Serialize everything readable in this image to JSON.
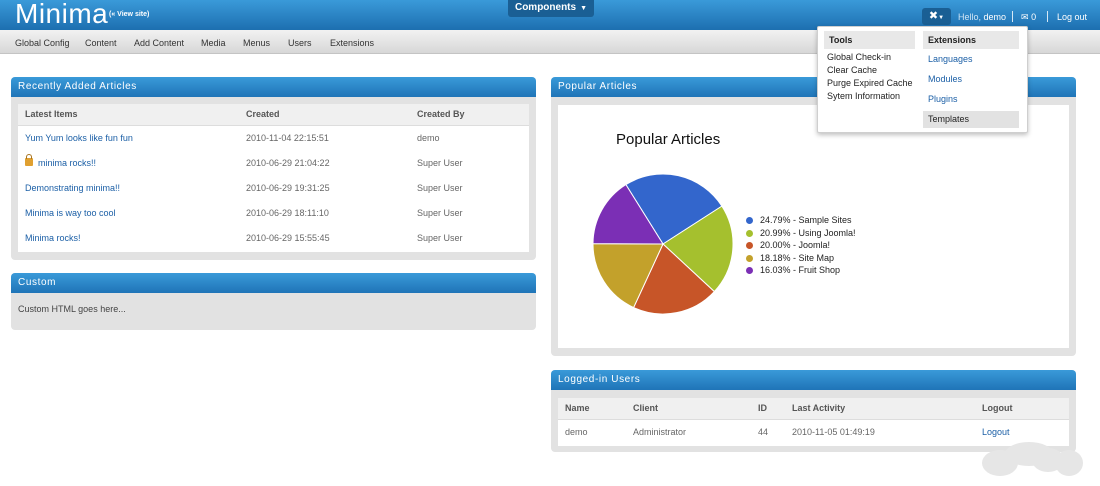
{
  "header": {
    "logo": "Minima",
    "view_site": "(« View site)",
    "components_label": "Components",
    "hello_prefix": "Hello,",
    "user": "demo",
    "message_count": "0",
    "logout": "Log out"
  },
  "menubar": {
    "items": [
      "Global Config",
      "Content",
      "Add Content",
      "Media",
      "Menus",
      "Users",
      "Extensions"
    ]
  },
  "recent_articles": {
    "title": "Recently Added Articles",
    "columns": [
      "Latest Items",
      "Created",
      "Created By"
    ],
    "rows": [
      {
        "item": "Yum Yum looks like fun fun",
        "created": "2010-11-04 22:15:51",
        "by": "demo"
      },
      {
        "item": "minima rocks!!",
        "created": "2010-06-29 21:04:22",
        "by": "Super User"
      },
      {
        "item": "Demonstrating minima!!",
        "created": "2010-06-29 19:31:25",
        "by": "Super User"
      },
      {
        "item": "Minima is way too cool",
        "created": "2010-06-29 18:11:10",
        "by": "Super User"
      },
      {
        "item": "Minima rocks!",
        "created": "2010-06-29 15:55:45",
        "by": "Super User"
      }
    ]
  },
  "custom": {
    "title": "Custom",
    "text": "Custom HTML goes here..."
  },
  "popular": {
    "title": "Popular Articles"
  },
  "chart_data": {
    "type": "pie",
    "title": "Popular Articles",
    "legend": [
      "24.79% - Sample Sites",
      "20.99% - Using Joomla!",
      "20.00% - Joomla!",
      "18.18% - Site Map",
      "16.03% - Fruit Shop"
    ],
    "categories": [
      "Sample Sites",
      "Using Joomla!",
      "Joomla!",
      "Site Map",
      "Fruit Shop"
    ],
    "values": [
      24.79,
      20.99,
      20.0,
      18.18,
      16.03
    ],
    "colors": [
      "#3366cc",
      "#a5c02e",
      "#c75528",
      "#c3a12b",
      "#7b2fb5"
    ],
    "legend_position": "right"
  },
  "logged_in": {
    "title": "Logged-in Users",
    "columns": [
      "Name",
      "Client",
      "ID",
      "Last Activity",
      "Logout"
    ],
    "rows": [
      {
        "name": "demo",
        "client": "Administrator",
        "id": "44",
        "activity": "2010-11-05 01:49:19",
        "logout": "Logout"
      }
    ]
  },
  "dropdown": {
    "tools_title": "Tools",
    "tools": [
      "Global Check-in",
      "Clear Cache",
      "Purge Expired Cache",
      "Sytem Information"
    ],
    "extensions_title": "Extensions",
    "extensions": [
      "Languages",
      "Modules",
      "Plugins",
      "Templates"
    ],
    "active_extension": "Templates"
  },
  "icons": {
    "tools": "wrench-icon",
    "messages": "envelope-icon",
    "locked": "lock-icon"
  }
}
